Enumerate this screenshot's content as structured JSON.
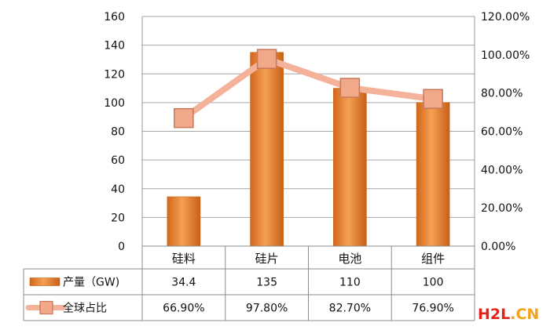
{
  "chart_data": {
    "type": "bar",
    "categories": [
      "硅料",
      "硅片",
      "电池",
      "组件"
    ],
    "series": [
      {
        "name": "产量（GW)",
        "type": "bar",
        "values": [
          34.4,
          135,
          110,
          100
        ],
        "display": [
          "34.4",
          "135",
          "110",
          "100"
        ],
        "color": "#E9862F"
      },
      {
        "name": "全球占比",
        "type": "line",
        "axis": "right",
        "values": [
          66.9,
          97.8,
          82.7,
          76.9
        ],
        "display": [
          "66.90%",
          "97.80%",
          "82.70%",
          "76.90%"
        ],
        "color": "#F4B29A"
      }
    ],
    "y_left": {
      "min": 0,
      "max": 160,
      "step": 20,
      "ticks": [
        "0",
        "20",
        "40",
        "60",
        "80",
        "100",
        "120",
        "140",
        "160"
      ]
    },
    "y_right": {
      "min": 0,
      "max": 120,
      "step": 20,
      "ticks": [
        "0.00%",
        "20.00%",
        "40.00%",
        "60.00%",
        "80.00%",
        "100.00%",
        "120.00%"
      ]
    },
    "grid": true,
    "legend": "data-table"
  },
  "watermark": {
    "part1": "H2L",
    "part2": ".CN"
  }
}
